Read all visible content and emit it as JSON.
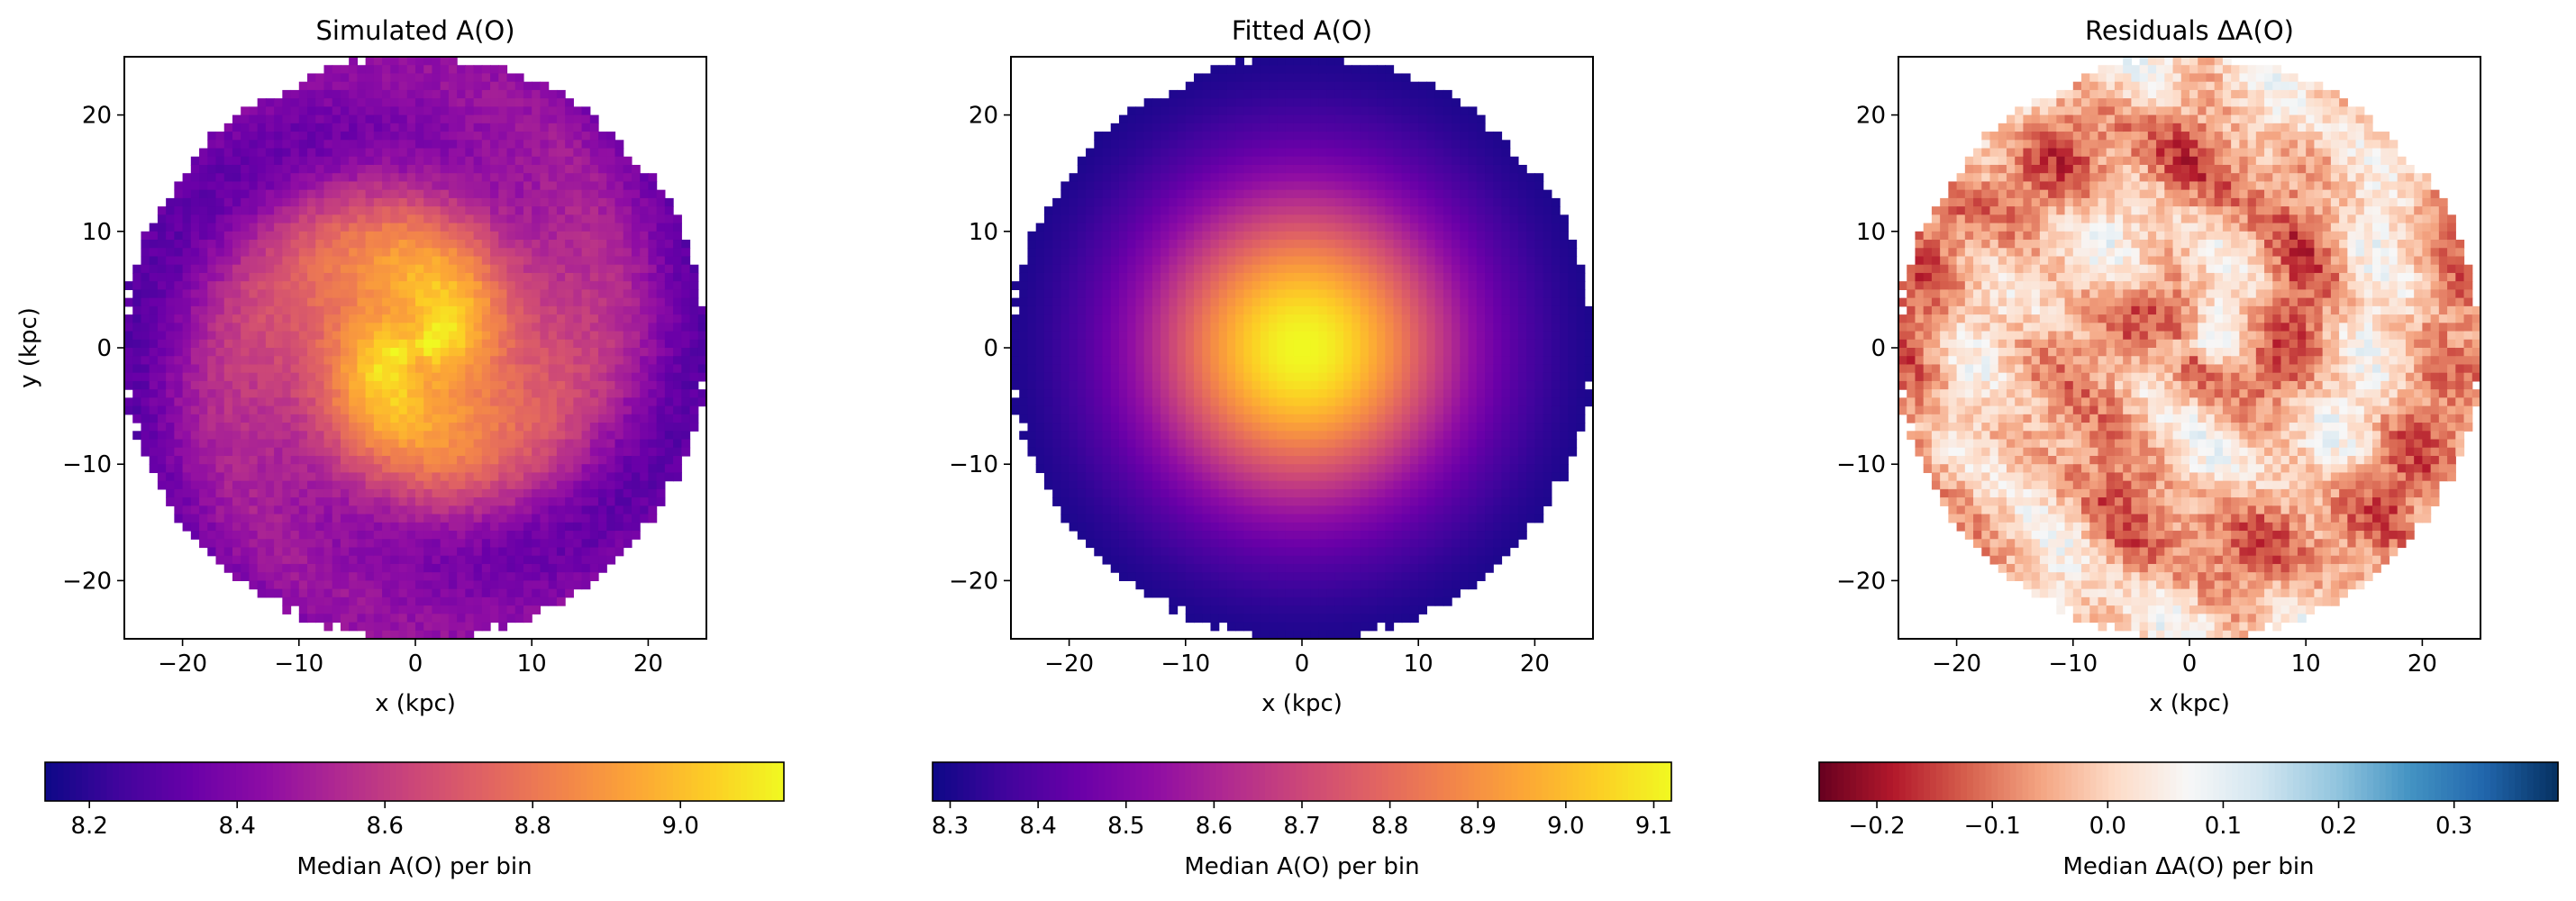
{
  "chart_data": [
    {
      "type": "heatmap",
      "title": "Simulated A(O)",
      "xlabel": "x (kpc)",
      "ylabel": "y (kpc)",
      "xlim": [
        -25,
        25
      ],
      "ylim": [
        -25,
        25
      ],
      "xticks": [
        -20,
        -10,
        0,
        10,
        20
      ],
      "yticks": [
        -20,
        -10,
        0,
        10,
        20
      ],
      "xtick_labels": [
        "−20",
        "−10",
        "0",
        "10",
        "20"
      ],
      "ytick_labels": [
        "−20",
        "−10",
        "0",
        "10",
        "20"
      ],
      "colormap": "plasma",
      "clim": [
        8.14,
        9.14
      ],
      "colorbar": {
        "label": "Median A(O) per bin",
        "ticks": [
          8.2,
          8.4,
          8.6,
          8.8,
          9.0
        ],
        "tick_labels": [
          "8.2",
          "8.4",
          "8.6",
          "8.8",
          "9.0"
        ]
      },
      "disk_radius": 25,
      "pattern": {
        "center_value": 9.05,
        "edge_value": 8.35,
        "spiral_amplitude": 0.08,
        "noise": 0.04
      }
    },
    {
      "type": "heatmap",
      "title": "Fitted A(O)",
      "xlabel": "x (kpc)",
      "ylabel": "",
      "xlim": [
        -25,
        25
      ],
      "ylim": [
        -25,
        25
      ],
      "xticks": [
        -20,
        -10,
        0,
        10,
        20
      ],
      "yticks": [
        -20,
        -10,
        0,
        10,
        20
      ],
      "xtick_labels": [
        "−20",
        "−10",
        "0",
        "10",
        "20"
      ],
      "ytick_labels": [
        "−20",
        "−10",
        "0",
        "10",
        "20"
      ],
      "colormap": "plasma",
      "clim": [
        8.28,
        9.12
      ],
      "colorbar": {
        "label": "Median A(O) per bin",
        "ticks": [
          8.3,
          8.4,
          8.5,
          8.6,
          8.7,
          8.8,
          8.9,
          9.0,
          9.1
        ],
        "tick_labels": [
          "8.3",
          "8.4",
          "8.5",
          "8.6",
          "8.7",
          "8.8",
          "8.9",
          "9.0",
          "9.1"
        ]
      },
      "disk_radius": 25,
      "pattern": {
        "center_value": 9.12,
        "edge_value": 8.28,
        "spiral_amplitude": 0,
        "noise": 0
      }
    },
    {
      "type": "heatmap",
      "title": "Residuals ΔA(O)",
      "xlabel": "x (kpc)",
      "ylabel": "",
      "xlim": [
        -25,
        25
      ],
      "ylim": [
        -25,
        25
      ],
      "xticks": [
        -20,
        -10,
        0,
        10,
        20
      ],
      "yticks": [
        -20,
        -10,
        0,
        10,
        20
      ],
      "xtick_labels": [
        "−20",
        "−10",
        "0",
        "10",
        "20"
      ],
      "ytick_labels": [
        "−20",
        "−10",
        "0",
        "10",
        "20"
      ],
      "colormap": "RdBu",
      "clim": [
        -0.25,
        0.39
      ],
      "colorbar": {
        "label": "Median ΔA(O) per bin",
        "ticks": [
          -0.2,
          -0.1,
          0.0,
          0.1,
          0.2,
          0.3
        ],
        "tick_labels": [
          "−0.2",
          "−0.1",
          "0.0",
          "0.1",
          "0.2",
          "0.3"
        ]
      },
      "disk_radius": 25,
      "pattern": {
        "center_value": -0.04,
        "edge_value": -0.03,
        "spiral_amplitude": 0.07,
        "noise": 0.05
      }
    }
  ]
}
